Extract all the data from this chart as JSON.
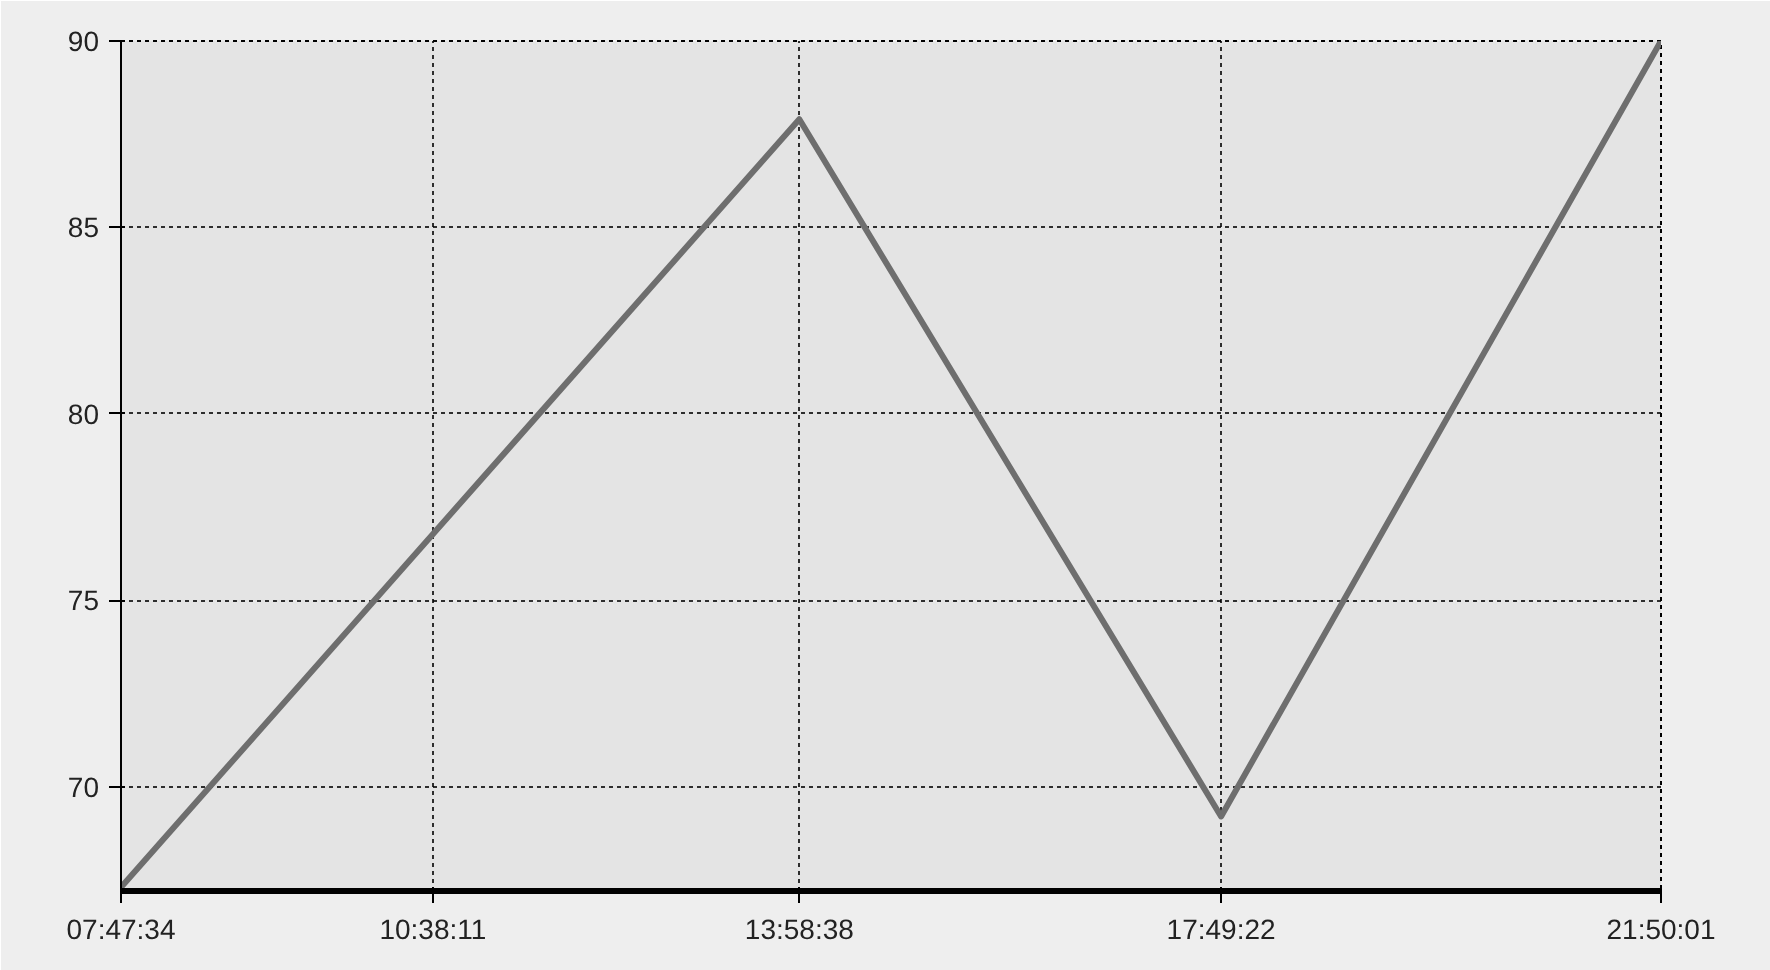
{
  "chart_data": {
    "type": "line",
    "x": [
      7.79278,
      13.97722,
      17.82278,
      21.83361
    ],
    "series": [
      {
        "color": "#6e6e6e",
        "values": [
          67.3,
          87.9,
          69.2,
          90
        ]
      }
    ],
    "xlim": [
      7.79278,
      21.83361
    ],
    "xticks": [
      {
        "value": 7.79278,
        "label": "07:47:34"
      },
      {
        "value": 10.63639,
        "label": "10:38:11"
      },
      {
        "value": 13.97722,
        "label": "13:58:38"
      },
      {
        "value": 17.82278,
        "label": "17:49:22"
      },
      {
        "value": 21.83361,
        "label": "21:50:01"
      }
    ],
    "ylim": [
      67.2,
      90
    ],
    "yticks": [
      70,
      75,
      80,
      85,
      90
    ],
    "grid": true,
    "marker": "none",
    "line_style": "solid"
  }
}
